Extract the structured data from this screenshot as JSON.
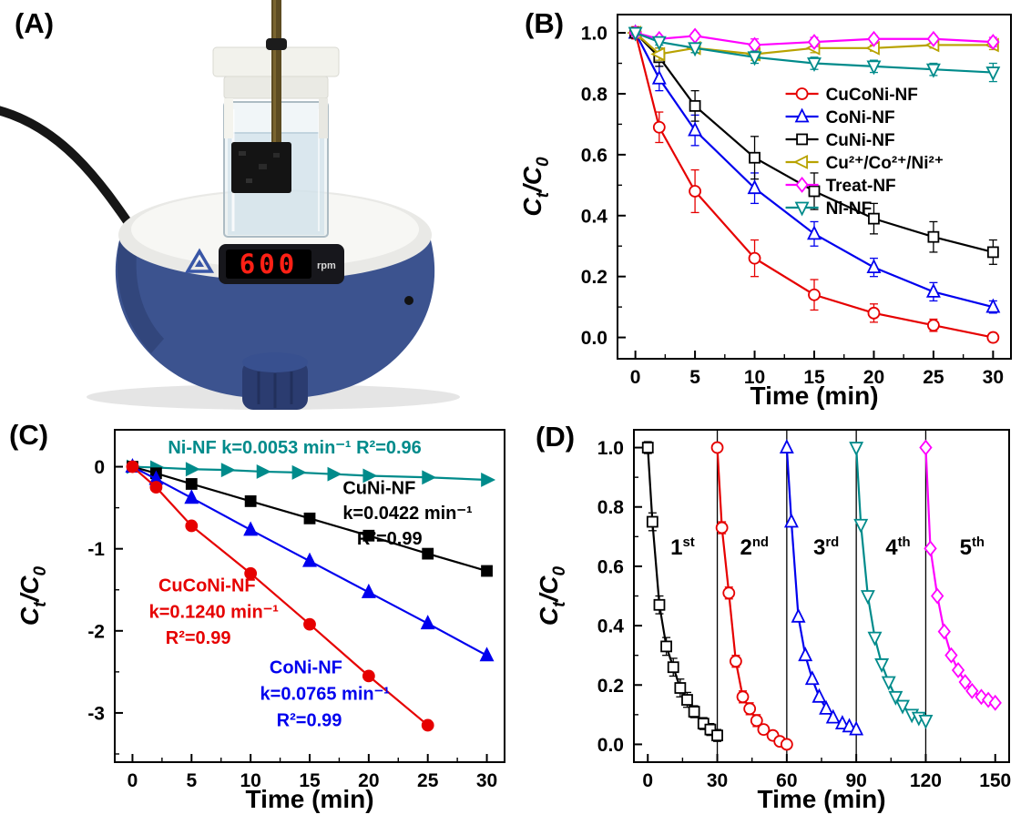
{
  "panels": {
    "a": {
      "label": "(A)"
    },
    "b": {
      "label": "(B)"
    },
    "c": {
      "label": "(C)"
    },
    "d": {
      "label": "(D)"
    }
  },
  "photo": {
    "display_value": "600",
    "display_unit": "rpm"
  },
  "chart_data": [
    {
      "id": "degradation-curves",
      "panel": "B",
      "type": "line",
      "xlabel": "Time (min)",
      "ylabel_parts": [
        {
          "t": "C",
          "sub": false
        },
        {
          "t": "t",
          "sub": true
        },
        {
          "t": "/C",
          "sub": false
        },
        {
          "t": "0",
          "sub": true
        }
      ],
      "xlim": [
        -1.5,
        31.5
      ],
      "ylim": [
        -0.07,
        1.06
      ],
      "xticks": [
        0,
        5,
        10,
        15,
        20,
        25,
        30
      ],
      "yticks": [
        0.0,
        0.2,
        0.4,
        0.6,
        0.8,
        1.0
      ],
      "xminor": 2.5,
      "yminor": 0.1,
      "ydecimals": 1,
      "legend": {
        "x": 12.6,
        "y": 0.8,
        "row": 25
      },
      "series": [
        {
          "name": "CuCoNi-NF",
          "color": "#e60000",
          "marker": "circle",
          "open": true,
          "x": [
            0,
            2,
            5,
            10,
            15,
            20,
            25,
            30
          ],
          "y": [
            1.0,
            0.69,
            0.48,
            0.26,
            0.14,
            0.08,
            0.04,
            0.0
          ],
          "err": [
            0.02,
            0.05,
            0.07,
            0.06,
            0.05,
            0.03,
            0.02,
            0.015
          ]
        },
        {
          "name": "CoNi-NF",
          "color": "#0000ee",
          "marker": "triangle-up",
          "open": true,
          "x": [
            0,
            2,
            5,
            10,
            15,
            20,
            25,
            30
          ],
          "y": [
            1.0,
            0.85,
            0.68,
            0.49,
            0.34,
            0.23,
            0.15,
            0.1
          ],
          "err": [
            0.015,
            0.04,
            0.05,
            0.05,
            0.04,
            0.03,
            0.03,
            0.02
          ]
        },
        {
          "name": "CuNi-NF",
          "color": "#000000",
          "marker": "square",
          "open": true,
          "x": [
            0,
            2,
            5,
            10,
            15,
            20,
            25,
            30
          ],
          "y": [
            1.0,
            0.92,
            0.76,
            0.59,
            0.48,
            0.39,
            0.33,
            0.28
          ],
          "err": [
            0.01,
            0.03,
            0.05,
            0.07,
            0.06,
            0.05,
            0.05,
            0.04
          ]
        },
        {
          "name": "Cu²⁺/Co²⁺/Ni²⁺",
          "color": "#b8a200",
          "marker": "triangle-left",
          "open": true,
          "x": [
            0,
            2,
            5,
            10,
            15,
            20,
            25,
            30
          ],
          "y": [
            1.0,
            0.93,
            0.95,
            0.93,
            0.95,
            0.95,
            0.96,
            0.96
          ],
          "err": [
            0.01,
            0.02,
            0.015,
            0.02,
            0.015,
            0.01,
            0.01,
            0.015
          ]
        },
        {
          "name": "Treat-NF",
          "color": "#ff00ff",
          "marker": "diamond",
          "open": true,
          "x": [
            0,
            2,
            5,
            10,
            15,
            20,
            25,
            30
          ],
          "y": [
            1.0,
            0.98,
            0.99,
            0.96,
            0.97,
            0.98,
            0.98,
            0.97
          ],
          "err": [
            0.005,
            0.01,
            0.01,
            0.02,
            0.015,
            0.01,
            0.01,
            0.015
          ]
        },
        {
          "name": "Ni-NF",
          "color": "#008b8b",
          "marker": "triangle-down",
          "open": true,
          "x": [
            0,
            2,
            5,
            10,
            15,
            20,
            25,
            30
          ],
          "y": [
            1.0,
            0.97,
            0.95,
            0.92,
            0.9,
            0.89,
            0.88,
            0.87
          ],
          "err": [
            0.005,
            0.01,
            0.015,
            0.02,
            0.02,
            0.02,
            0.02,
            0.03
          ]
        }
      ]
    },
    {
      "id": "pseudo-first-order-kinetics",
      "panel": "C",
      "type": "line",
      "xlabel": "Time (min)",
      "ylabel_parts": [
        {
          "t": "C",
          "sub": false
        },
        {
          "t": "t",
          "sub": true
        },
        {
          "t": "/C",
          "sub": false
        },
        {
          "t": "0",
          "sub": true
        }
      ],
      "xlim": [
        -1.5,
        31.5
      ],
      "ylim": [
        -3.6,
        0.45
      ],
      "xticks": [
        0,
        5,
        10,
        15,
        20,
        25,
        30
      ],
      "yticks": [
        0,
        -1,
        -2,
        -3
      ],
      "xminor": 2.5,
      "yminor": 0.5,
      "ydecimals": 0,
      "series": [
        {
          "name": "Ni-NF",
          "color": "#008b8b",
          "marker": "triangle-right",
          "open": false,
          "x": [
            0,
            2,
            5,
            8,
            11,
            14,
            17,
            20,
            25,
            30
          ],
          "y": [
            0,
            -0.01,
            -0.03,
            -0.04,
            -0.06,
            -0.07,
            -0.09,
            -0.11,
            -0.13,
            -0.16
          ]
        },
        {
          "name": "CuNi-NF",
          "color": "#000000",
          "marker": "square",
          "open": false,
          "x": [
            0,
            2,
            5,
            10,
            15,
            20,
            25,
            30
          ],
          "y": [
            0,
            -0.08,
            -0.21,
            -0.42,
            -0.63,
            -0.84,
            -1.06,
            -1.27
          ]
        },
        {
          "name": "CoNi-NF",
          "color": "#0000ee",
          "marker": "triangle-up",
          "open": false,
          "x": [
            0,
            2,
            5,
            10,
            15,
            20,
            25,
            30
          ],
          "y": [
            0,
            -0.15,
            -0.38,
            -0.77,
            -1.15,
            -1.53,
            -1.91,
            -2.3
          ]
        },
        {
          "name": "CuCoNi-NF",
          "color": "#e60000",
          "marker": "circle",
          "open": false,
          "x": [
            0,
            2,
            5,
            10,
            15,
            20,
            25
          ],
          "y": [
            0,
            -0.25,
            -0.72,
            -1.3,
            -1.92,
            -2.55,
            -3.15
          ]
        }
      ],
      "annotations": [
        {
          "x": 3.0,
          "y": 0.16,
          "t": "Ni-NF k=0.0053 min⁻¹ R²=0.96",
          "color": "#008b8b",
          "size": 20
        },
        {
          "x": 17.8,
          "y": -0.33,
          "t": "CuNi-NF",
          "color": "#000000",
          "size": 20
        },
        {
          "x": 17.8,
          "y": -0.64,
          "t": "k=0.0422 min⁻¹",
          "color": "#000000",
          "size": 20
        },
        {
          "x": 19.0,
          "y": -0.95,
          "t": "R²=0.99",
          "color": "#000000",
          "size": 20
        },
        {
          "x": 2.2,
          "y": -1.52,
          "t": "CuCoNi-NF",
          "color": "#e60000",
          "size": 20
        },
        {
          "x": 1.4,
          "y": -1.84,
          "t": "k=0.1240 min⁻¹",
          "color": "#e60000",
          "size": 20
        },
        {
          "x": 2.8,
          "y": -2.16,
          "t": "R²=0.99",
          "color": "#e60000",
          "size": 20
        },
        {
          "x": 11.6,
          "y": -2.52,
          "t": "CoNi-NF",
          "color": "#0000ee",
          "size": 20
        },
        {
          "x": 10.8,
          "y": -2.84,
          "t": "k=0.0765 min⁻¹",
          "color": "#0000ee",
          "size": 20
        },
        {
          "x": 12.2,
          "y": -3.16,
          "t": "R²=0.99",
          "color": "#0000ee",
          "size": 20
        }
      ]
    },
    {
      "id": "reusability-cycles",
      "panel": "D",
      "type": "line",
      "xlabel": "Time (min)",
      "ylabel_parts": [
        {
          "t": "C",
          "sub": false
        },
        {
          "t": "t",
          "sub": true
        },
        {
          "t": "/C",
          "sub": false
        },
        {
          "t": "0",
          "sub": true
        }
      ],
      "xlim": [
        -6,
        156
      ],
      "ylim": [
        -0.06,
        1.06
      ],
      "xticks": [
        0,
        30,
        60,
        90,
        120,
        150
      ],
      "yticks": [
        0.0,
        0.2,
        0.4,
        0.6,
        0.8,
        1.0
      ],
      "xminor": 15,
      "yminor": 0.1,
      "ydecimals": 1,
      "vlines": [
        30,
        60,
        90,
        120
      ],
      "series": [
        {
          "name": "1st cycle",
          "color": "#000000",
          "marker": "square",
          "open": true,
          "x": [
            0,
            2,
            5,
            8,
            11,
            14,
            17,
            20,
            24,
            27,
            30
          ],
          "y": [
            1.0,
            0.75,
            0.47,
            0.33,
            0.26,
            0.19,
            0.15,
            0.11,
            0.07,
            0.05,
            0.03
          ],
          "err": [
            0.02,
            0.03,
            0.03,
            0.03,
            0.03,
            0.03,
            0.025,
            0.02,
            0.02,
            0.02,
            0.02
          ]
        },
        {
          "name": "2nd cycle",
          "color": "#e60000",
          "marker": "circle",
          "open": true,
          "x": [
            30,
            32,
            35,
            38,
            41,
            44,
            47,
            50,
            54,
            57,
            60
          ],
          "y": [
            1.0,
            0.73,
            0.51,
            0.28,
            0.16,
            0.12,
            0.08,
            0.05,
            0.03,
            0.01,
            0.0
          ],
          "err": [
            0.01,
            0.02,
            0.02,
            0.02,
            0.02,
            0.02,
            0.02,
            0.015,
            0.015,
            0.01,
            0.01
          ]
        },
        {
          "name": "3rd cycle",
          "color": "#0000ee",
          "marker": "triangle-up",
          "open": true,
          "x": [
            60,
            62,
            65,
            68,
            71,
            74,
            77,
            80,
            84,
            87,
            90
          ],
          "y": [
            1.0,
            0.75,
            0.43,
            0.3,
            0.22,
            0.16,
            0.12,
            0.09,
            0.07,
            0.06,
            0.05
          ]
        },
        {
          "name": "4th cycle",
          "color": "#008b8b",
          "marker": "triangle-down",
          "open": true,
          "x": [
            90,
            92,
            95,
            98,
            101,
            104,
            107,
            110,
            114,
            117,
            120
          ],
          "y": [
            1.0,
            0.74,
            0.5,
            0.36,
            0.27,
            0.21,
            0.16,
            0.13,
            0.1,
            0.09,
            0.08
          ]
        },
        {
          "name": "5th cycle",
          "color": "#ff00ff",
          "marker": "diamond",
          "open": true,
          "x": [
            120,
            122,
            125,
            128,
            131,
            134,
            137,
            140,
            144,
            147,
            150
          ],
          "y": [
            1.0,
            0.66,
            0.5,
            0.38,
            0.3,
            0.25,
            0.21,
            0.18,
            0.16,
            0.15,
            0.14
          ]
        }
      ],
      "annotations": [
        {
          "x": 15,
          "y": 0.64,
          "t": "1",
          "sup": "st",
          "color": "#000000",
          "size": 24,
          "anchor": "middle"
        },
        {
          "x": 46,
          "y": 0.64,
          "t": "2",
          "sup": "nd",
          "color": "#000000",
          "size": 24,
          "anchor": "middle"
        },
        {
          "x": 77,
          "y": 0.64,
          "t": "3",
          "sup": "rd",
          "color": "#000000",
          "size": 24,
          "anchor": "middle"
        },
        {
          "x": 108,
          "y": 0.64,
          "t": "4",
          "sup": "th",
          "color": "#000000",
          "size": 24,
          "anchor": "middle"
        },
        {
          "x": 140,
          "y": 0.64,
          "t": "5",
          "sup": "th",
          "color": "#000000",
          "size": 24,
          "anchor": "middle"
        }
      ]
    }
  ]
}
